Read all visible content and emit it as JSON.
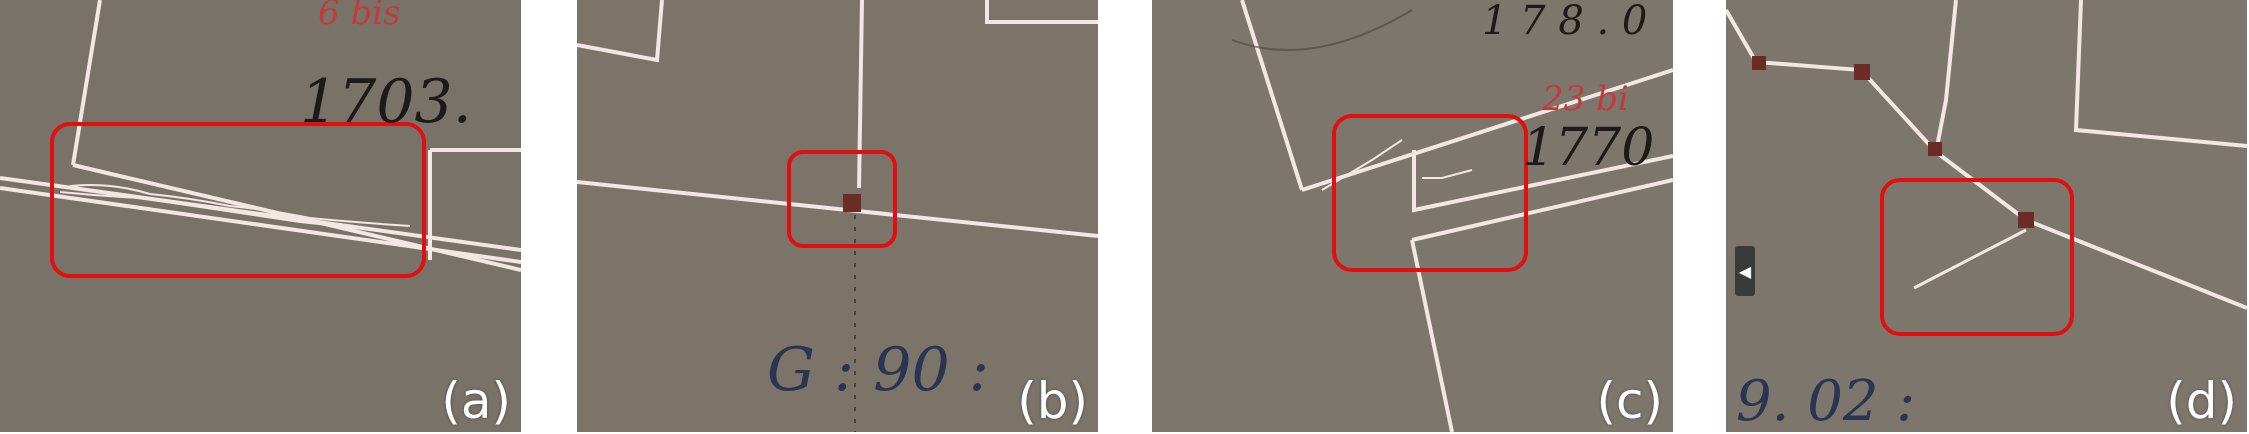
{
  "colors": {
    "paper": "#7d766c",
    "parcel_line": "#f3e7e4",
    "highlight_box": "#e10f0f",
    "red_ink": "#c23b3b",
    "black_ink": "#1e1a18",
    "blue_ink": "#2a3552"
  },
  "panels": [
    {
      "label": "(a)",
      "handwriting": {
        "black": "1703.",
        "red": "6 bis"
      }
    },
    {
      "label": "(b)",
      "handwriting": {
        "blue": "G : 90 :"
      }
    },
    {
      "label": "(c)",
      "handwriting": {
        "black": "1770",
        "black_top": "1 7 8 . 0",
        "red": "23 bi"
      }
    },
    {
      "label": "(d)",
      "handwriting": {
        "blue": "9. 02 :"
      },
      "nav_icon": "left-triangle-icon"
    }
  ]
}
